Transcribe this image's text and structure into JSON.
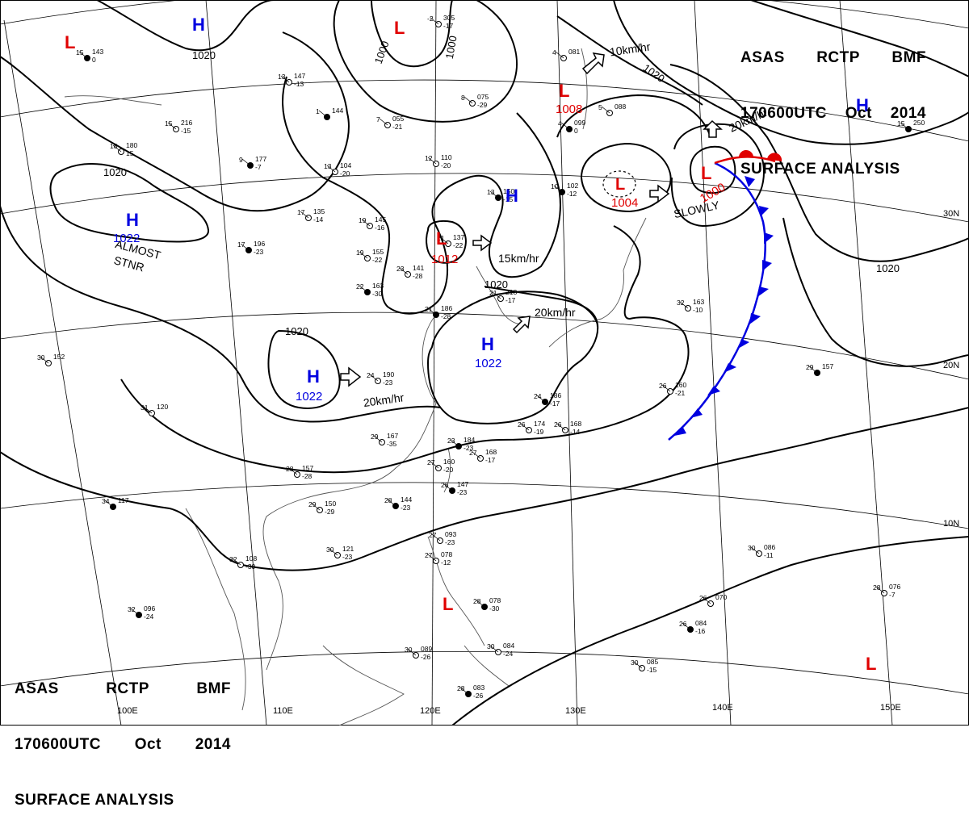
{
  "header": {
    "line1": [
      "ASAS",
      "RCTP",
      "BMF"
    ],
    "line2": [
      "170600UTC",
      "Oct",
      "2014"
    ],
    "line3": "SURFACE ANALYSIS"
  },
  "colors": {
    "low": "#e00000",
    "high": "#0000e0",
    "isobar": "#000000",
    "grid": "#000000",
    "coast": "#555555"
  },
  "longitudes": [
    "100E",
    "110E",
    "120E",
    "130E",
    "140E",
    "150E"
  ],
  "latitudes": [
    "30N",
    "20N",
    "10N"
  ],
  "highs": [
    {
      "id": "h-nw",
      "symbol": "H",
      "pressure": ""
    },
    {
      "id": "h-ne",
      "symbol": "H",
      "pressure": ""
    },
    {
      "id": "h-west",
      "symbol": "H",
      "pressure": "1022"
    },
    {
      "id": "h-china",
      "symbol": "H",
      "pressure": "1022"
    },
    {
      "id": "h-east",
      "symbol": "H",
      "pressure": "1022"
    },
    {
      "id": "h-korea",
      "symbol": "H",
      "pressure": ""
    }
  ],
  "lows": [
    {
      "id": "l-nw",
      "symbol": "L",
      "pressure": ""
    },
    {
      "id": "l-north",
      "symbol": "L",
      "pressure": ""
    },
    {
      "id": "l-sakha",
      "symbol": "L",
      "pressure": "1008"
    },
    {
      "id": "l-japan",
      "symbol": "L",
      "pressure": "1004"
    },
    {
      "id": "l-typhoon",
      "symbol": "L",
      "pressure": "1000"
    },
    {
      "id": "l-yellow",
      "symbol": "L",
      "pressure": "1012"
    },
    {
      "id": "l-phil",
      "symbol": "L",
      "pressure": ""
    },
    {
      "id": "l-se",
      "symbol": "L",
      "pressure": ""
    }
  ],
  "isobar_labels": [
    "1020",
    "1000",
    "1000",
    "1020",
    "1020",
    "1020",
    "1020"
  ],
  "motion_labels": [
    "10km/hr",
    "20km/hr",
    "SLOWLY",
    "15km/hr",
    "20km/hr",
    "20km/hr",
    "ALMOST",
    "STNR"
  ],
  "stations": [
    {
      "code": "143",
      "temp": "15",
      "dew": "0"
    },
    {
      "code": "180",
      "temp": "18",
      "dew": "15"
    },
    {
      "code": "216",
      "temp": "15",
      "dew": "-15"
    },
    {
      "code": "177",
      "temp": "9",
      "dew": "-7"
    },
    {
      "code": "135",
      "temp": "17",
      "dew": "-14"
    },
    {
      "code": "145",
      "temp": "19",
      "dew": "-16"
    },
    {
      "code": "196",
      "temp": "17",
      "dew": "-23"
    },
    {
      "code": "155",
      "temp": "19",
      "dew": "-22"
    },
    {
      "code": "141",
      "temp": "23",
      "dew": "-28"
    },
    {
      "code": "163",
      "temp": "22",
      "dew": "-30"
    },
    {
      "code": "190",
      "temp": "24",
      "dew": "-23"
    },
    {
      "code": "167",
      "temp": "29",
      "dew": "-35"
    },
    {
      "code": "186",
      "temp": "24",
      "dew": "-17"
    },
    {
      "code": "174",
      "temp": "26",
      "dew": "-19"
    },
    {
      "code": "168",
      "temp": "26",
      "dew": "-14"
    },
    {
      "code": "184",
      "temp": "23",
      "dew": "-23"
    },
    {
      "code": "168",
      "temp": "27",
      "dew": "-17"
    },
    {
      "code": "160",
      "temp": "27",
      "dew": "-20"
    },
    {
      "code": "147",
      "temp": "26",
      "dew": "-23"
    },
    {
      "code": "157",
      "temp": "28",
      "dew": "-28"
    },
    {
      "code": "150",
      "temp": "29",
      "dew": "-29"
    },
    {
      "code": "144",
      "temp": "28",
      "dew": "-23"
    },
    {
      "code": "121",
      "temp": "30",
      "dew": "-23"
    },
    {
      "code": "108",
      "temp": "32",
      "dew": "-30"
    },
    {
      "code": "117",
      "temp": "34",
      "dew": ""
    },
    {
      "code": "120",
      "temp": "31",
      "dew": ""
    },
    {
      "code": "152",
      "temp": "30",
      "dew": ""
    },
    {
      "code": "096",
      "temp": "32",
      "dew": "-24"
    },
    {
      "code": "093",
      "temp": "27",
      "dew": "-23"
    },
    {
      "code": "078",
      "temp": "27",
      "dew": "-12"
    },
    {
      "code": "078",
      "temp": "28",
      "dew": "-30"
    },
    {
      "code": "084",
      "temp": "30",
      "dew": "-24"
    },
    {
      "code": "089",
      "temp": "30",
      "dew": "-26"
    },
    {
      "code": "083",
      "temp": "28",
      "dew": "-26"
    },
    {
      "code": "163",
      "temp": "32",
      "dew": "-10"
    },
    {
      "code": "160",
      "temp": "26",
      "dew": "-21"
    },
    {
      "code": "157",
      "temp": "29",
      "dew": ""
    },
    {
      "code": "086",
      "temp": "30",
      "dew": "-11"
    },
    {
      "code": "070",
      "temp": "26",
      "dew": ""
    },
    {
      "code": "084",
      "temp": "26",
      "dew": "-16"
    },
    {
      "code": "085",
      "temp": "30",
      "dew": "-15"
    },
    {
      "code": "076",
      "temp": "28",
      "dew": "-7"
    },
    {
      "code": "250",
      "temp": "15",
      "dew": ""
    },
    {
      "code": "081",
      "temp": "4",
      "dew": ""
    },
    {
      "code": "088",
      "temp": "5",
      "dew": ""
    },
    {
      "code": "099",
      "temp": "4",
      "dew": "0"
    },
    {
      "code": "075",
      "temp": "8",
      "dew": "-29"
    },
    {
      "code": "055",
      "temp": "7",
      "dew": "-21"
    },
    {
      "code": "144",
      "temp": "1",
      "dew": ""
    },
    {
      "code": "104",
      "temp": "13",
      "dew": "-20"
    },
    {
      "code": "110",
      "temp": "12",
      "dew": "-20"
    },
    {
      "code": "150",
      "temp": "13",
      "dew": "-15"
    },
    {
      "code": "137",
      "temp": "21",
      "dew": "-22"
    },
    {
      "code": "218",
      "temp": "21",
      "dew": "-17"
    },
    {
      "code": "186",
      "temp": "21",
      "dew": "-28"
    },
    {
      "code": "305",
      "temp": "-2",
      "dew": "-17"
    },
    {
      "code": "147",
      "temp": "13",
      "dew": "-13"
    },
    {
      "code": "102",
      "temp": "10",
      "dew": "-12"
    }
  ]
}
